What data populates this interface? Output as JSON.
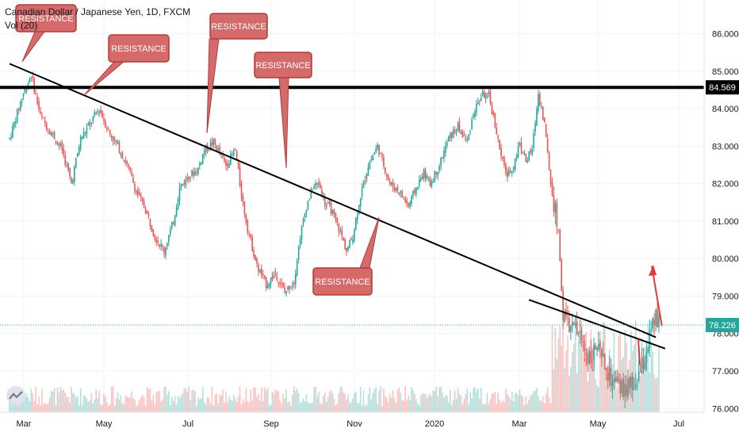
{
  "legend": {
    "symbol": "Canadian Dollar / Japanese Yen, 1D, FXCM",
    "vol": "Vol (20)"
  },
  "colors": {
    "up": "#26a69a",
    "down": "#ef5350",
    "price_line": "#26a69a",
    "callout_fill": "#d46a6a",
    "callout_border": "#b23b3b",
    "arrow": "#e53935"
  },
  "chart_data": {
    "type": "candlestick",
    "title": "Canadian Dollar / Japanese Yen, 1D, FXCM",
    "indicator": "Vol (20)",
    "y_axis": {
      "ticks": [
        86.0,
        85.0,
        84.0,
        83.0,
        82.0,
        81.0,
        80.0,
        79.0,
        78.0,
        77.0,
        76.0
      ],
      "range": [
        75.9,
        86.9
      ]
    },
    "x_axis": {
      "ticks": [
        "Mar",
        "May",
        "Jul",
        "Sep",
        "Nov",
        "2020",
        "Mar",
        "May",
        "Jul"
      ]
    },
    "price_labels": {
      "resistance_level": "84.569",
      "current_price": "78.226"
    },
    "annotations": [
      "RESISTANCE",
      "RESISTANCE",
      "RESISTANCE",
      "RESISTANCE",
      "RESISTANCE"
    ],
    "path_series": [
      {
        "name": "price_path",
        "points": [
          [
            0,
            83.2
          ],
          [
            8,
            84.3
          ],
          [
            14,
            84.9
          ],
          [
            20,
            83.8
          ],
          [
            28,
            83.3
          ],
          [
            34,
            82.9
          ],
          [
            40,
            82.0
          ],
          [
            46,
            83.2
          ],
          [
            52,
            83.6
          ],
          [
            58,
            84.0
          ],
          [
            64,
            83.4
          ],
          [
            70,
            83.0
          ],
          [
            76,
            82.5
          ],
          [
            82,
            81.8
          ],
          [
            88,
            81.3
          ],
          [
            94,
            80.6
          ],
          [
            100,
            80.2
          ],
          [
            106,
            81.0
          ],
          [
            110,
            81.9
          ],
          [
            116,
            82.2
          ],
          [
            122,
            82.4
          ],
          [
            126,
            82.9
          ],
          [
            132,
            83.1
          ],
          [
            136,
            82.8
          ],
          [
            140,
            82.5
          ],
          [
            146,
            82.9
          ],
          [
            150,
            81.7
          ],
          [
            154,
            80.8
          ],
          [
            160,
            79.8
          ],
          [
            166,
            79.3
          ],
          [
            172,
            79.6
          ],
          [
            178,
            79.1
          ],
          [
            184,
            79.4
          ],
          [
            188,
            80.6
          ],
          [
            192,
            81.4
          ],
          [
            196,
            81.9
          ],
          [
            200,
            82.0
          ],
          [
            204,
            81.5
          ],
          [
            208,
            81.3
          ],
          [
            214,
            80.7
          ],
          [
            218,
            80.2
          ],
          [
            222,
            80.6
          ],
          [
            226,
            81.5
          ],
          [
            232,
            82.5
          ],
          [
            238,
            83.0
          ],
          [
            242,
            82.5
          ],
          [
            246,
            82.0
          ],
          [
            252,
            81.8
          ],
          [
            258,
            81.4
          ],
          [
            262,
            81.8
          ],
          [
            268,
            82.3
          ],
          [
            272,
            82.0
          ],
          [
            278,
            82.5
          ],
          [
            284,
            83.2
          ],
          [
            290,
            83.5
          ],
          [
            296,
            83.1
          ],
          [
            300,
            83.9
          ],
          [
            306,
            84.4
          ],
          [
            310,
            84.3
          ],
          [
            314,
            83.6
          ],
          [
            318,
            82.7
          ],
          [
            322,
            82.2
          ],
          [
            326,
            82.5
          ],
          [
            330,
            83.1
          ],
          [
            334,
            82.6
          ],
          [
            338,
            82.9
          ],
          [
            342,
            84.4
          ],
          [
            346,
            83.6
          ],
          [
            350,
            82.0
          ],
          [
            354,
            81.0
          ],
          [
            356,
            80.0
          ],
          [
            358,
            78.5
          ],
          [
            362,
            78.2
          ],
          [
            368,
            78.0
          ],
          [
            374,
            77.4
          ],
          [
            380,
            77.6
          ],
          [
            386,
            77.0
          ],
          [
            392,
            76.6
          ],
          [
            398,
            76.5
          ],
          [
            404,
            76.6
          ],
          [
            410,
            77.2
          ],
          [
            414,
            77.9
          ],
          [
            418,
            78.4
          ],
          [
            420,
            78.23
          ]
        ]
      }
    ],
    "line_series": [
      {
        "name": "upper-trendline",
        "points": [
          [
            0,
            85.2
          ],
          [
            418,
            77.9
          ]
        ]
      },
      {
        "name": "lower-trendline",
        "points": [
          [
            336,
            78.9
          ],
          [
            424,
            77.6
          ]
        ]
      }
    ],
    "horizontal_level": 84.569,
    "volume": {
      "ylim": [
        0,
        1
      ],
      "values_range": [
        0.15,
        0.55
      ]
    },
    "projection": {
      "from": [
        424,
        78.2
      ],
      "up_to": 79.8,
      "down_to": 77.8
    }
  }
}
